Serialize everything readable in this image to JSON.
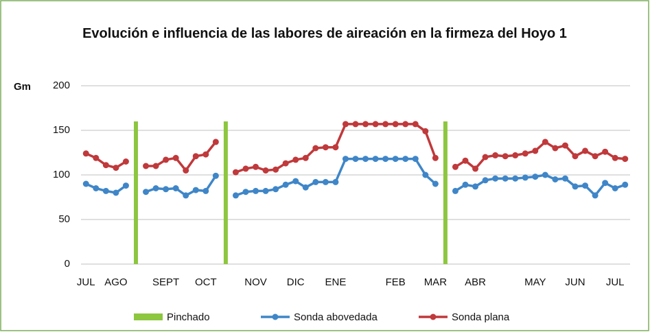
{
  "chart_data": {
    "type": "line",
    "title": "Evolución e influencia de las labores de aireación en la firmeza del Hoyo 1",
    "y_label": "Gm",
    "categories": [
      "JUL",
      null,
      null,
      "AGO",
      null,
      null,
      null,
      null,
      "SEPT",
      null,
      null,
      null,
      "OCT",
      null,
      null,
      null,
      null,
      "NOV",
      null,
      null,
      null,
      "DIC",
      null,
      null,
      null,
      "ENE",
      null,
      null,
      null,
      null,
      null,
      "FEB",
      null,
      null,
      null,
      "MAR",
      null,
      null,
      null,
      "ABR",
      null,
      null,
      null,
      null,
      null,
      "MAY",
      null,
      null,
      null,
      "JUN",
      null,
      null,
      null,
      "JUL",
      null
    ],
    "series": [
      {
        "name": "Pinchado",
        "type": "bar",
        "color": "#8dc63f",
        "values": [
          null,
          null,
          null,
          null,
          null,
          160,
          null,
          null,
          null,
          null,
          null,
          null,
          null,
          null,
          160,
          null,
          null,
          null,
          null,
          null,
          null,
          null,
          null,
          null,
          null,
          null,
          null,
          null,
          null,
          null,
          null,
          null,
          null,
          null,
          null,
          null,
          160,
          null,
          null,
          null,
          null,
          null,
          null,
          null,
          null,
          null,
          null,
          null,
          null,
          null,
          null,
          null,
          null,
          null,
          null
        ]
      },
      {
        "name": "Sonda abovedada",
        "color": "#3f86c8",
        "values": [
          90,
          85,
          82,
          80,
          88,
          null,
          81,
          85,
          84,
          85,
          77,
          83,
          82,
          99,
          null,
          77,
          81,
          82,
          82,
          84,
          89,
          93,
          86,
          92,
          92,
          92,
          118,
          118,
          118,
          118,
          118,
          118,
          118,
          118,
          100,
          90,
          null,
          82,
          89,
          87,
          94,
          96,
          96,
          96,
          97,
          98,
          100,
          95,
          96,
          87,
          88,
          77,
          91,
          85,
          89
        ]
      },
      {
        "name": "Sonda plana",
        "color": "#c0393b",
        "values": [
          124,
          119,
          111,
          108,
          115,
          null,
          110,
          110,
          117,
          119,
          105,
          121,
          123,
          137,
          null,
          103,
          107,
          109,
          105,
          106,
          113,
          117,
          119,
          130,
          131,
          131,
          157,
          157,
          157,
          157,
          157,
          157,
          157,
          157,
          149,
          119,
          null,
          109,
          116,
          107,
          120,
          122,
          121,
          122,
          124,
          127,
          137,
          130,
          133,
          121,
          127,
          121,
          126,
          119,
          118
        ]
      }
    ],
    "ylim": [
      0,
      200
    ],
    "yticks": [
      0,
      50,
      100,
      150,
      200
    ],
    "grid": true,
    "legend": "bottom"
  }
}
